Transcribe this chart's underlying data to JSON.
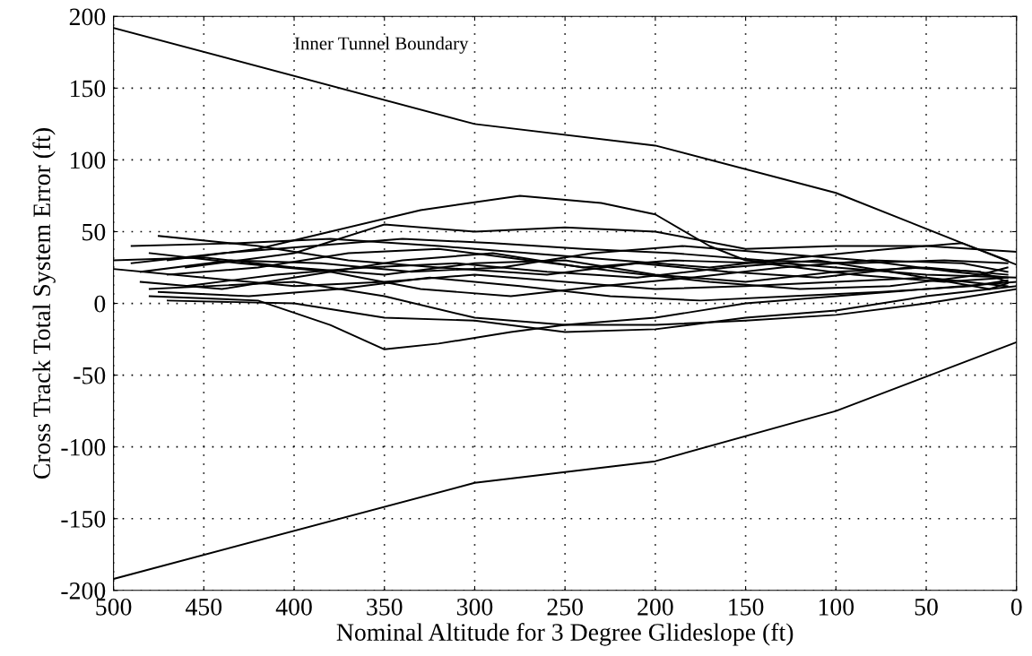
{
  "chart_data": {
    "type": "line",
    "xlabel": "Nominal Altitude for 3 Degree Glideslope (ft)",
    "ylabel": "Cross Track Total System Error (ft)",
    "annotations": [
      "Inner Tunnel Boundary"
    ],
    "xlim": [
      500,
      0
    ],
    "xticks": [
      500,
      450,
      400,
      350,
      300,
      250,
      200,
      150,
      100,
      50,
      0
    ],
    "ylim": [
      -200,
      200
    ],
    "yticks": [
      -200,
      -150,
      -100,
      -50,
      0,
      50,
      100,
      150,
      200
    ],
    "grid": true,
    "line_style": "solid",
    "marker": "none",
    "series": [
      {
        "color": "#000000",
        "x": [
          500,
          300,
          200,
          100,
          0
        ],
        "values": [
          192,
          125,
          110,
          77,
          27
        ]
      },
      {
        "color": "#000000",
        "x": [
          500,
          300,
          200,
          100,
          0
        ],
        "values": [
          -192,
          -125,
          -110,
          -75,
          -27
        ]
      },
      {
        "color": "#000000",
        "x": [
          470,
          420,
          380,
          330,
          275,
          230,
          200,
          170,
          150,
          100,
          50,
          0
        ],
        "values": [
          30,
          38,
          50,
          65,
          75,
          70,
          62,
          40,
          30,
          25,
          20,
          18
        ]
      },
      {
        "color": "#000000",
        "x": [
          460,
          400,
          350,
          300,
          250,
          200,
          150,
          100,
          50,
          0
        ],
        "values": [
          25,
          35,
          55,
          50,
          53,
          50,
          38,
          40,
          40,
          36
        ]
      },
      {
        "color": "#000000",
        "x": [
          480,
          420,
          380,
          350,
          320,
          280,
          250,
          200,
          150,
          100,
          50,
          0
        ],
        "values": [
          5,
          2,
          -15,
          -32,
          -28,
          -20,
          -15,
          -10,
          0,
          5,
          10,
          15
        ]
      },
      {
        "color": "#000000",
        "x": [
          470,
          400,
          350,
          300,
          250,
          200,
          150,
          100,
          50,
          0
        ],
        "values": [
          2,
          0,
          -10,
          -12,
          -20,
          -18,
          -10,
          -5,
          5,
          12
        ]
      },
      {
        "color": "#000000",
        "x": [
          480,
          400,
          350,
          300,
          250,
          200,
          150,
          100,
          50,
          0
        ],
        "values": [
          10,
          15,
          5,
          -10,
          -15,
          -15,
          -12,
          -8,
          0,
          10
        ]
      },
      {
        "color": "#000000",
        "x": [
          490,
          430,
          380,
          320,
          270,
          220,
          170,
          120,
          70,
          30,
          5
        ],
        "values": [
          40,
          42,
          45,
          40,
          35,
          30,
          25,
          32,
          38,
          42,
          30
        ]
      },
      {
        "color": "#000000",
        "x": [
          475,
          420,
          370,
          320,
          260,
          210,
          160,
          110,
          60,
          20,
          5
        ],
        "values": [
          47,
          40,
          30,
          25,
          20,
          28,
          22,
          18,
          25,
          22,
          15
        ]
      },
      {
        "color": "#000000",
        "x": [
          500,
          450,
          400,
          350,
          300,
          250,
          200,
          150,
          100,
          50,
          5
        ],
        "values": [
          30,
          32,
          25,
          20,
          28,
          30,
          20,
          15,
          22,
          25,
          20
        ]
      },
      {
        "color": "#000000",
        "x": [
          500,
          450,
          400,
          350,
          300,
          250,
          200,
          150,
          100,
          50,
          5
        ],
        "values": [
          24,
          18,
          12,
          15,
          20,
          15,
          10,
          12,
          15,
          18,
          12
        ]
      },
      {
        "color": "#000000",
        "x": [
          485,
          440,
          390,
          340,
          290,
          240,
          190,
          140,
          90,
          40,
          5
        ],
        "values": [
          15,
          10,
          20,
          30,
          35,
          25,
          30,
          28,
          20,
          15,
          18
        ]
      },
      {
        "color": "#000000",
        "x": [
          480,
          430,
          380,
          330,
          280,
          230,
          180,
          130,
          80,
          30,
          5
        ],
        "values": [
          35,
          28,
          22,
          10,
          5,
          12,
          18,
          25,
          30,
          28,
          22
        ]
      },
      {
        "color": "#000000",
        "x": [
          470,
          420,
          370,
          320,
          270,
          220,
          170,
          120,
          70,
          20,
          5
        ],
        "values": [
          20,
          25,
          35,
          38,
          30,
          22,
          15,
          10,
          12,
          20,
          25
        ]
      },
      {
        "color": "#000000",
        "x": [
          490,
          440,
          390,
          340,
          290,
          240,
          190,
          140,
          90,
          40,
          5
        ],
        "values": [
          28,
          35,
          40,
          45,
          42,
          38,
          35,
          30,
          28,
          30,
          28
        ]
      },
      {
        "color": "#000000",
        "x": [
          475,
          425,
          375,
          325,
          275,
          225,
          175,
          125,
          75,
          25,
          5
        ],
        "values": [
          8,
          5,
          10,
          18,
          12,
          5,
          2,
          5,
          8,
          12,
          16
        ]
      },
      {
        "color": "#000000",
        "x": [
          485,
          435,
          385,
          335,
          285,
          235,
          185,
          135,
          85,
          35,
          5
        ],
        "values": [
          22,
          30,
          28,
          22,
          25,
          35,
          40,
          35,
          30,
          22,
          18
        ]
      },
      {
        "color": "#000000",
        "x": [
          460,
          410,
          360,
          310,
          260,
          210,
          160,
          110,
          60,
          15,
          5
        ],
        "values": [
          12,
          20,
          25,
          28,
          22,
          18,
          25,
          30,
          20,
          10,
          14
        ]
      }
    ]
  }
}
